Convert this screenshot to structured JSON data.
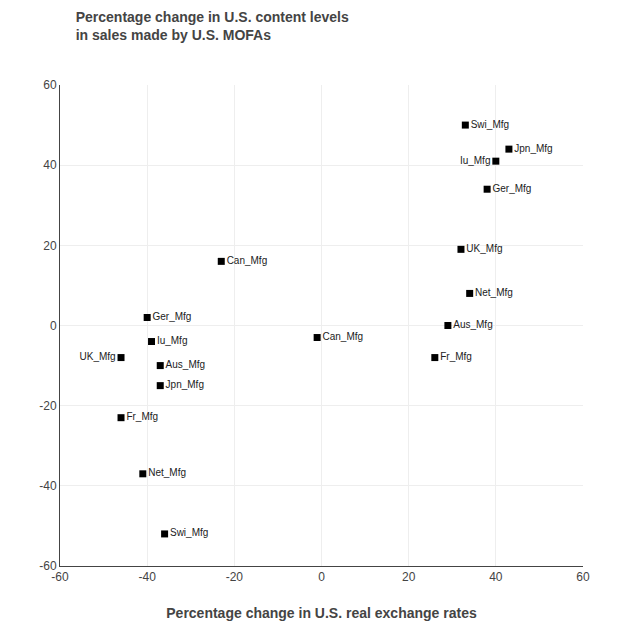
{
  "chart_data": {
    "type": "scatter",
    "title": "Percentage change in U.S. content levels",
    "subtitle": "in sales made by U.S. MOFAs",
    "xlabel": "Percentage change in U.S. real exchange rates",
    "xlim": [
      -60,
      60
    ],
    "ylim": [
      -60,
      60
    ],
    "xticks": [
      -60,
      -40,
      -20,
      0,
      20,
      40,
      60
    ],
    "yticks": [
      -60,
      -40,
      -20,
      0,
      20,
      40,
      60
    ],
    "grid": true,
    "marker": "square",
    "series": [
      {
        "color": "black",
        "x": [
          -40,
          -39,
          -46,
          -37,
          -37,
          -46,
          -41,
          -36,
          -23
        ],
        "values": [
          2,
          -4,
          -8,
          -10,
          -15,
          -23,
          -37,
          -52,
          16
        ],
        "labels": [
          "Ger_Mfg",
          "Iu_Mfg",
          "UK_Mfg",
          "Aus_Mfg",
          "Jpn_Mfg",
          "Fr_Mfg",
          "Net_Mfg",
          "Swi_Mfg",
          "Can_Mfg"
        ]
      },
      {
        "color": "black",
        "x": [
          33,
          43,
          40,
          38,
          32,
          34,
          29,
          26,
          -1
        ],
        "values": [
          50,
          44,
          41,
          34,
          19,
          8,
          0,
          -8,
          -3
        ],
        "labels": [
          "Swi_Mfg",
          "Jpn_Mfg",
          "Iu_Mfg",
          "Ger_Mfg",
          "UK_Mfg",
          "Net_Mfg",
          "Aus_Mfg",
          "Fr_Mfg",
          "Can_Mfg"
        ]
      }
    ]
  }
}
